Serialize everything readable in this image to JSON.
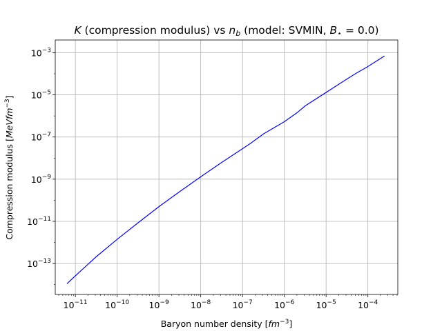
{
  "chart_data": {
    "type": "line",
    "title_parts": {
      "k": "K",
      "desc": "(compression modulus) vs",
      "n": "n",
      "n_sub": "b",
      "model": "(model: SVMIN,",
      "b": "B",
      "b_sub": "⋆",
      "b_value": "= 0.0)"
    },
    "xlabel_parts": {
      "text": "Baryon number density [",
      "unit": "fm",
      "exp": "−3",
      "close": "]"
    },
    "ylabel_parts": {
      "text": "Compression modulus [",
      "unit": "MeVfm",
      "exp": "−3",
      "close": "]"
    },
    "xscale": "log",
    "yscale": "log",
    "xlim": [
      3.3e-12,
      0.00052
    ],
    "ylim": [
      3.4e-15,
      0.004
    ],
    "grid": true,
    "line_color": "#0000ff",
    "x_ticks": [
      {
        "value": 1e-11,
        "base": "10",
        "exp": "−11"
      },
      {
        "value": 1e-10,
        "base": "10",
        "exp": "−10"
      },
      {
        "value": 1e-09,
        "base": "10",
        "exp": "−9"
      },
      {
        "value": 1e-08,
        "base": "10",
        "exp": "−8"
      },
      {
        "value": 1e-07,
        "base": "10",
        "exp": "−7"
      },
      {
        "value": 1e-06,
        "base": "10",
        "exp": "−6"
      },
      {
        "value": 1e-05,
        "base": "10",
        "exp": "−5"
      },
      {
        "value": 0.0001,
        "base": "10",
        "exp": "−4"
      }
    ],
    "y_ticks": [
      {
        "value": 1e-13,
        "base": "10",
        "exp": "−13"
      },
      {
        "value": 1e-11,
        "base": "10",
        "exp": "−11"
      },
      {
        "value": 1e-09,
        "base": "10",
        "exp": "−9"
      },
      {
        "value": 1e-07,
        "base": "10",
        "exp": "−7"
      },
      {
        "value": 1e-05,
        "base": "10",
        "exp": "−5"
      },
      {
        "value": 0.001,
        "base": "10",
        "exp": "−3"
      }
    ],
    "series": [
      {
        "x": [
          6.3e-12,
          1e-11,
          3.16e-11,
          1e-10,
          3.16e-10,
          1e-09,
          3.16e-09,
          1e-08,
          3.16e-08,
          1e-07,
          1.6e-07,
          3.16e-07,
          1e-06,
          2e-06,
          3.16e-06,
          1e-05,
          2.5e-05,
          5e-05,
          0.0001,
          0.00025
        ],
        "y": [
          1.1e-14,
          2.6e-14,
          2.1e-13,
          1.4e-12,
          8.5e-12,
          5e-11,
          2.6e-10,
          1.3e-09,
          6.2e-09,
          2.8e-08,
          5.2e-08,
          1.4e-07,
          5.3e-07,
          1.4e-06,
          3e-06,
          1.3e-05,
          4.2e-05,
          0.0001,
          0.00022,
          0.0007
        ]
      }
    ]
  }
}
